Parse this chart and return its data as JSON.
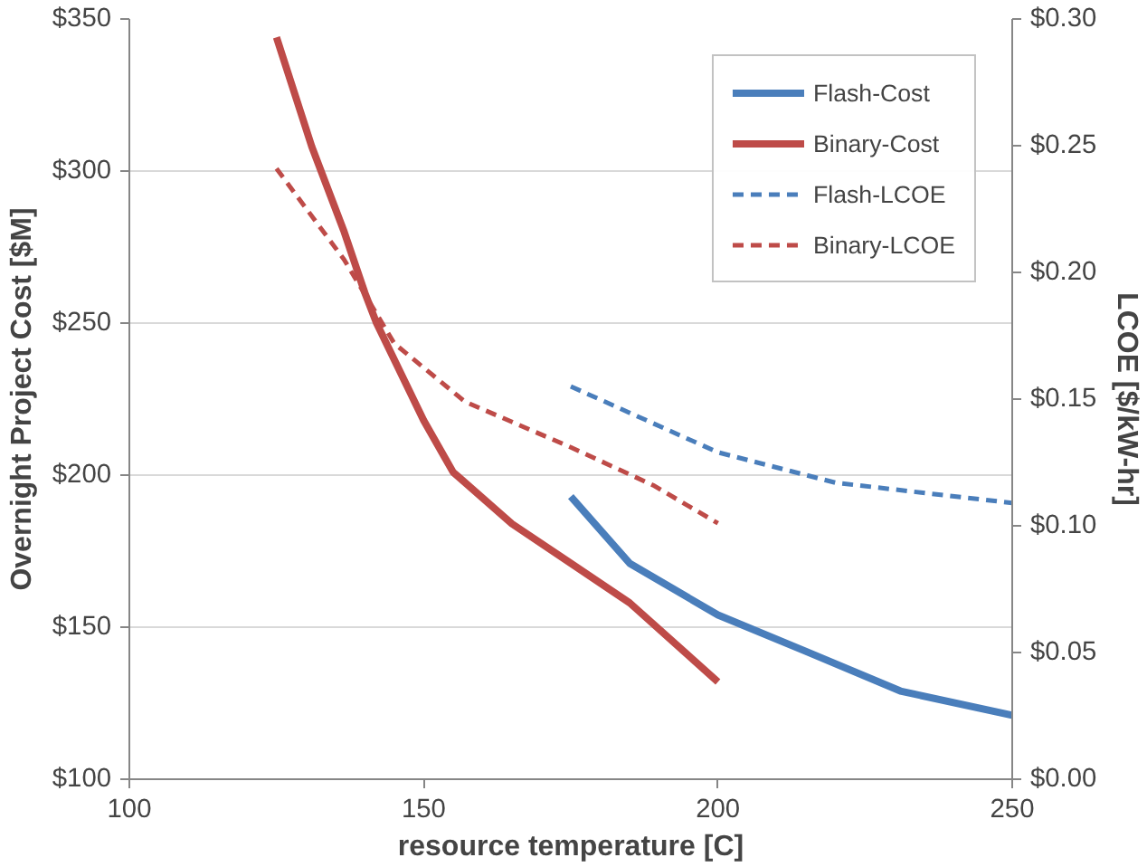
{
  "chart_data": {
    "type": "line",
    "xlabel": "resource temperature [C]",
    "ylabel": "Overnight Project Cost [$M]",
    "y2label": "LCOE [$/kW-hr]",
    "xlim": [
      100,
      250
    ],
    "xticks": [
      100,
      150,
      200,
      250
    ],
    "ylim": [
      100,
      350
    ],
    "yticks": [
      {
        "value": 100,
        "label": "$100"
      },
      {
        "value": 150,
        "label": "$150"
      },
      {
        "value": 200,
        "label": "$200"
      },
      {
        "value": 250,
        "label": "$250"
      },
      {
        "value": 300,
        "label": "$300"
      },
      {
        "value": 350,
        "label": "$350"
      }
    ],
    "y2lim": [
      0,
      0.3
    ],
    "y2ticks": [
      {
        "value": 0,
        "label": "$0.00"
      },
      {
        "value": 0.05,
        "label": "$0.05"
      },
      {
        "value": 0.1,
        "label": "$0.10"
      },
      {
        "value": 0.15,
        "label": "$0.15"
      },
      {
        "value": 0.2,
        "label": "$0.20"
      },
      {
        "value": 0.25,
        "label": "$0.25"
      },
      {
        "value": 0.3,
        "label": "$0.30"
      }
    ],
    "grid": "y",
    "legend": "top right",
    "series": [
      {
        "name": "Flash-Cost",
        "color": "#4a7ebb",
        "line_style": "solid",
        "x": [
          175,
          185,
          200,
          215,
          231,
          250
        ],
        "values": [
          193,
          171,
          154,
          142,
          129,
          121
        ]
      },
      {
        "name": "Binary-Cost",
        "color": "#be4b48",
        "line_style": "solid",
        "x": [
          125,
          131,
          136.5,
          140,
          142,
          150,
          155,
          165,
          175,
          185,
          200
        ],
        "values": [
          344,
          308,
          280,
          260,
          250,
          218,
          201,
          184,
          171,
          158,
          132
        ]
      },
      {
        "name": "Flash-LCOE",
        "color": "#4a7ebb",
        "line_style": "dashed",
        "axis": "y2",
        "x": [
          175,
          200,
          220,
          250
        ],
        "values": [
          0.155,
          0.129,
          0.117,
          0.109
        ]
      },
      {
        "name": "Binary-LCOE",
        "color": "#be4b48",
        "line_style": "dashed",
        "axis": "y2",
        "x": [
          125,
          136.5,
          145,
          157,
          175,
          189,
          200
        ],
        "values": [
          0.241,
          0.205,
          0.172,
          0.149,
          0.131,
          0.116,
          0.101
        ]
      }
    ]
  }
}
